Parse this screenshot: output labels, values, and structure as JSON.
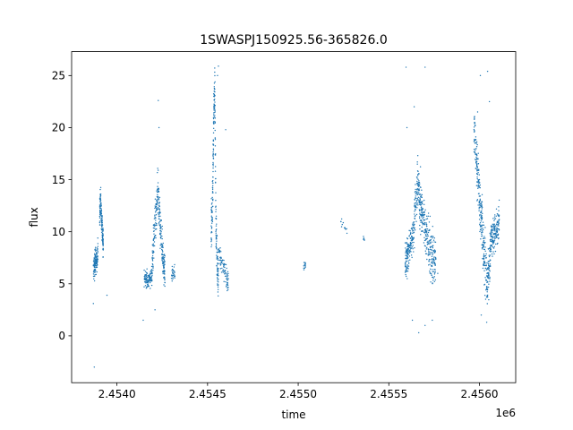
{
  "chart_data": {
    "type": "scatter",
    "title": "1SWASPJ150925.56-365826.0",
    "xlabel": "time",
    "ylabel": "flux",
    "x_offset_label": "1e6",
    "x_tick_labels": [
      "2.4540",
      "2.4545",
      "2.4550",
      "2.4555",
      "2.4560"
    ],
    "x_ticks": [
      2454000,
      2454500,
      2455000,
      2455500,
      2456000
    ],
    "y_ticks": [
      0,
      5,
      10,
      15,
      20,
      25
    ],
    "xlim": [
      2453750,
      2456200
    ],
    "ylim": [
      -4.5,
      27.3
    ],
    "grid": false,
    "point_color": "#1f77b4",
    "segments": [
      {
        "x0": 2453870,
        "x1": 2453895,
        "trend": [
          [
            0.0,
            6.2
          ],
          [
            0.3,
            6.8
          ],
          [
            0.6,
            7.2
          ],
          [
            1.0,
            8.0
          ]
        ],
        "scatter": 0.9,
        "n": 120
      },
      {
        "x0": 2453905,
        "x1": 2453925,
        "trend": [
          [
            0.0,
            12.0
          ],
          [
            0.25,
            13.0
          ],
          [
            0.55,
            11.0
          ],
          [
            0.8,
            10.0
          ],
          [
            1.0,
            8.5
          ]
        ],
        "scatter": 1.0,
        "n": 140
      },
      {
        "x0": 2454150,
        "x1": 2454195,
        "trend": [
          [
            0.0,
            5.6
          ],
          [
            0.5,
            5.2
          ],
          [
            1.0,
            6.0
          ]
        ],
        "scatter": 0.6,
        "n": 110
      },
      {
        "x0": 2454195,
        "x1": 2454265,
        "trend": [
          [
            0.0,
            7.0
          ],
          [
            0.25,
            11.0
          ],
          [
            0.45,
            14.0
          ],
          [
            0.65,
            10.0
          ],
          [
            0.85,
            7.5
          ],
          [
            1.0,
            6.0
          ]
        ],
        "scatter": 1.4,
        "n": 260
      },
      {
        "x0": 2454300,
        "x1": 2454320,
        "trend": [
          [
            0.0,
            5.8
          ],
          [
            1.0,
            6.2
          ]
        ],
        "scatter": 0.5,
        "n": 30
      },
      {
        "x0": 2454520,
        "x1": 2454560,
        "trend": [
          [
            0.0,
            10.0
          ],
          [
            0.2,
            13.0
          ],
          [
            0.35,
            21.0
          ],
          [
            0.5,
            24.0
          ],
          [
            0.65,
            11.0
          ],
          [
            0.85,
            7.0
          ],
          [
            1.0,
            5.0
          ]
        ],
        "scatter": 1.6,
        "n": 230
      },
      {
        "x0": 2454560,
        "x1": 2454615,
        "trend": [
          [
            0.0,
            8.0
          ],
          [
            0.4,
            7.0
          ],
          [
            1.0,
            5.0
          ]
        ],
        "scatter": 0.9,
        "n": 80
      },
      {
        "x0": 2455030,
        "x1": 2455040,
        "trend": [
          [
            0.0,
            6.6
          ],
          [
            1.0,
            6.8
          ]
        ],
        "scatter": 0.3,
        "n": 15
      },
      {
        "x0": 2455220,
        "x1": 2455270,
        "trend": [
          [
            0.0,
            11.3
          ],
          [
            1.0,
            10.3
          ]
        ],
        "scatter": 0.5,
        "n": 12
      },
      {
        "x0": 2455355,
        "x1": 2455365,
        "trend": [
          [
            0.0,
            9.4
          ],
          [
            1.0,
            9.3
          ]
        ],
        "scatter": 0.2,
        "n": 6
      },
      {
        "x0": 2455590,
        "x1": 2455640,
        "trend": [
          [
            0.0,
            7.0
          ],
          [
            0.5,
            8.5
          ],
          [
            1.0,
            10.0
          ]
        ],
        "scatter": 1.2,
        "n": 160
      },
      {
        "x0": 2455640,
        "x1": 2455760,
        "trend": [
          [
            0.0,
            11.0
          ],
          [
            0.15,
            14.5
          ],
          [
            0.35,
            12.0
          ],
          [
            0.55,
            10.0
          ],
          [
            0.75,
            8.0
          ],
          [
            1.0,
            7.0
          ]
        ],
        "scatter": 1.7,
        "n": 360
      },
      {
        "x0": 2455970,
        "x1": 2456060,
        "trend": [
          [
            0.0,
            20.0
          ],
          [
            0.15,
            17.0
          ],
          [
            0.35,
            13.0
          ],
          [
            0.55,
            9.0
          ],
          [
            0.8,
            5.0
          ],
          [
            1.0,
            8.0
          ]
        ],
        "scatter": 1.8,
        "n": 340
      },
      {
        "x0": 2456060,
        "x1": 2456110,
        "trend": [
          [
            0.0,
            9.0
          ],
          [
            0.5,
            10.0
          ],
          [
            1.0,
            11.0
          ]
        ],
        "scatter": 1.3,
        "n": 160
      }
    ],
    "outliers": [
      [
        2453870,
        3.1
      ],
      [
        2453875,
        -3.0
      ],
      [
        2453945,
        3.9
      ],
      [
        2454145,
        1.5
      ],
      [
        2454210,
        2.5
      ],
      [
        2454228,
        22.6
      ],
      [
        2454232,
        20.0
      ],
      [
        2454560,
        25.9
      ],
      [
        2454555,
        25.0
      ],
      [
        2454600,
        19.8
      ],
      [
        2455595,
        25.8
      ],
      [
        2455700,
        25.8
      ],
      [
        2455630,
        1.5
      ],
      [
        2455665,
        0.3
      ],
      [
        2455700,
        1.0
      ],
      [
        2455740,
        1.5
      ],
      [
        2455640,
        22.0
      ],
      [
        2455600,
        20.0
      ],
      [
        2456005,
        25.0
      ],
      [
        2456045,
        25.4
      ],
      [
        2456040,
        1.3
      ],
      [
        2456010,
        2.0
      ],
      [
        2455990,
        21.5
      ],
      [
        2456055,
        22.5
      ],
      [
        2455770,
        6.0
      ]
    ]
  }
}
